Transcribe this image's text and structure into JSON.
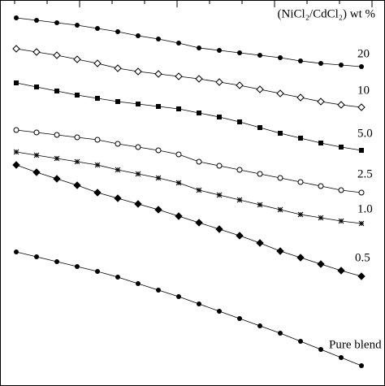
{
  "chart_data": {
    "type": "scatter",
    "legend_title": "(NiCl₂/CdCl₂) wt %",
    "xlim": [
      0,
      474
    ],
    "ylim": [
      0,
      475
    ],
    "x": [
      20,
      45,
      70,
      95,
      120,
      145,
      170,
      195,
      220,
      245,
      270,
      295,
      320,
      345,
      370,
      395,
      420,
      445
    ],
    "series": [
      {
        "name": "20",
        "color": "#000000",
        "marker": "circle-filled",
        "values": [
          453,
          450,
          447,
          444,
          440,
          436,
          431,
          427,
          422,
          416,
          413,
          410,
          407,
          404,
          400,
          397,
          395,
          393
        ]
      },
      {
        "name": "10",
        "color": "#000000",
        "marker": "diamond-open",
        "values": [
          415,
          411,
          407,
          402,
          397,
          391,
          387,
          384,
          381,
          378,
          374,
          370,
          365,
          360,
          355,
          350,
          346,
          343
        ]
      },
      {
        "name": "5.0",
        "color": "#000000",
        "marker": "square-filled",
        "values": [
          373,
          368,
          363,
          358,
          354,
          350,
          347,
          344,
          341,
          336,
          331,
          325,
          318,
          311,
          305,
          299,
          294,
          290
        ]
      },
      {
        "name": "2.5",
        "color": "#000000",
        "marker": "circle-open",
        "values": [
          315,
          312,
          309,
          306,
          303,
          298,
          294,
          290,
          285,
          276,
          271,
          266,
          261,
          256,
          251,
          246,
          241,
          238
        ]
      },
      {
        "name": "1.0",
        "color": "#000000",
        "marker": "star",
        "values": [
          288,
          284,
          280,
          276,
          272,
          266,
          261,
          256,
          250,
          241,
          235,
          229,
          223,
          217,
          211,
          207,
          203,
          200
        ]
      },
      {
        "name": "0.5",
        "color": "#000000",
        "marker": "diamond-filled",
        "values": [
          272,
          263,
          255,
          247,
          238,
          231,
          224,
          217,
          209,
          201,
          193,
          185,
          176,
          166,
          158,
          150,
          142,
          135
        ]
      },
      {
        "name": "Pure blend",
        "color": "#000000",
        "marker": "circle-filled",
        "values": [
          165,
          159,
          153,
          147,
          141,
          134,
          126,
          118,
          110,
          101,
          92,
          83,
          74,
          65,
          55,
          45,
          35,
          25
        ]
      }
    ]
  }
}
